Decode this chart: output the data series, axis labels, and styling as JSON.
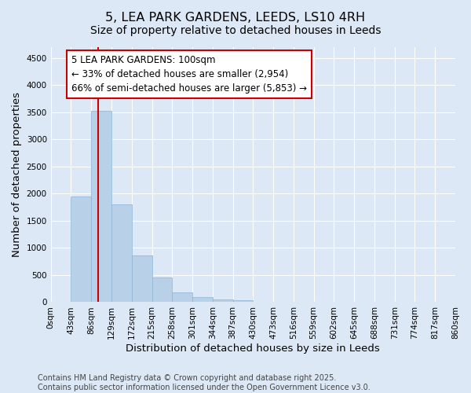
{
  "title": "5, LEA PARK GARDENS, LEEDS, LS10 4RH",
  "subtitle": "Size of property relative to detached houses in Leeds",
  "xlabel": "Distribution of detached houses by size in Leeds",
  "ylabel": "Number of detached properties",
  "bar_values": [
    0,
    1950,
    3520,
    1800,
    860,
    450,
    175,
    100,
    50,
    35,
    0,
    0,
    0,
    0,
    0,
    0,
    0,
    0,
    0,
    0
  ],
  "bin_edges": [
    0,
    43,
    86,
    129,
    172,
    215,
    258,
    301,
    344,
    387,
    430,
    473,
    516,
    559,
    602,
    645,
    688,
    731,
    774,
    817,
    860
  ],
  "tick_labels": [
    "0sqm",
    "43sqm",
    "86sqm",
    "129sqm",
    "172sqm",
    "215sqm",
    "258sqm",
    "301sqm",
    "344sqm",
    "387sqm",
    "430sqm",
    "473sqm",
    "516sqm",
    "559sqm",
    "602sqm",
    "645sqm",
    "688sqm",
    "731sqm",
    "774sqm",
    "817sqm",
    "860sqm"
  ],
  "bar_color": "#b8d0e8",
  "bar_edge_color": "#8ab4d4",
  "red_line_x": 100,
  "ylim": [
    0,
    4700
  ],
  "yticks": [
    0,
    500,
    1000,
    1500,
    2000,
    2500,
    3000,
    3500,
    4000,
    4500
  ],
  "annotation_text": "5 LEA PARK GARDENS: 100sqm\n← 33% of detached houses are smaller (2,954)\n66% of semi-detached houses are larger (5,853) →",
  "annotation_box_color": "#ffffff",
  "annotation_box_edge": "#cc0000",
  "footer_text": "Contains HM Land Registry data © Crown copyright and database right 2025.\nContains public sector information licensed under the Open Government Licence v3.0.",
  "background_color": "#dce8f5",
  "grid_color": "#ffffff",
  "title_fontsize": 11.5,
  "subtitle_fontsize": 10,
  "axis_label_fontsize": 9.5,
  "tick_fontsize": 7.5,
  "annotation_fontsize": 8.5,
  "footer_fontsize": 7
}
